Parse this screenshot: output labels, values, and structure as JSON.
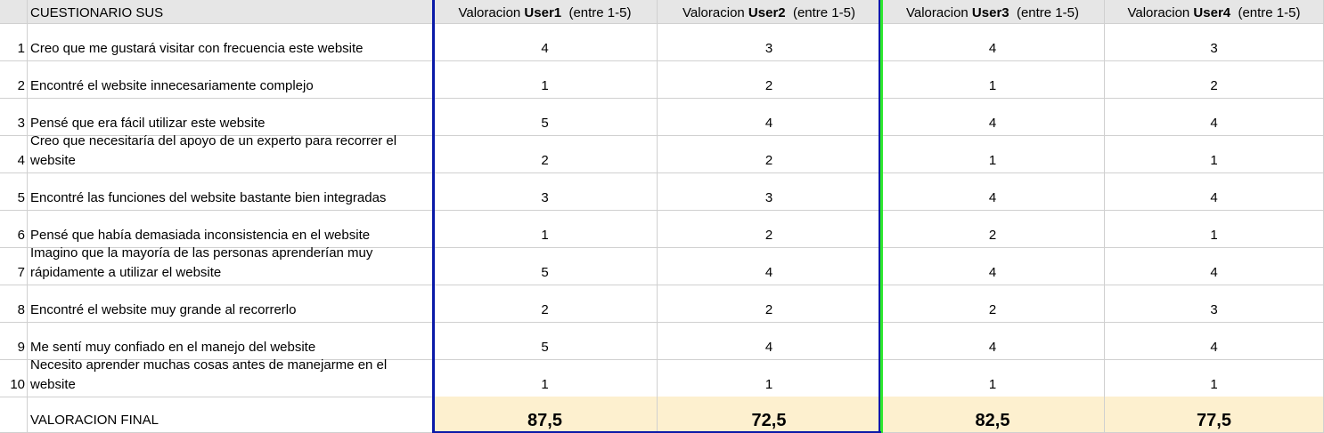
{
  "header": {
    "title": "CUESTIONARIO SUS",
    "users": [
      {
        "prefix": "Valoracion ",
        "user": "User1",
        "suffix": "  (entre 1-5)"
      },
      {
        "prefix": "Valoracion ",
        "user": "User2",
        "suffix": "  (entre 1-5)"
      },
      {
        "prefix": "Valoracion ",
        "user": "User3",
        "suffix": "  (entre 1-5)"
      },
      {
        "prefix": "Valoracion ",
        "user": "User4",
        "suffix": "  (entre 1-5)"
      }
    ]
  },
  "rows": [
    {
      "num": "1",
      "question": "Creo que me gustará visitar con frecuencia este website",
      "values": [
        "4",
        "3",
        "4",
        "3"
      ]
    },
    {
      "num": "2",
      "question": "Encontré el website innecesariamente complejo",
      "values": [
        "1",
        "2",
        "1",
        "2"
      ]
    },
    {
      "num": "3",
      "question": "Pensé que era fácil utilizar este website",
      "values": [
        "5",
        "4",
        "4",
        "4"
      ]
    },
    {
      "num": "4",
      "question": "Creo que necesitaría del apoyo de un experto para recorrer el website",
      "values": [
        "2",
        "2",
        "1",
        "1"
      ]
    },
    {
      "num": "5",
      "question": "Encontré las funciones del website bastante bien integradas",
      "values": [
        "3",
        "3",
        "4",
        "4"
      ]
    },
    {
      "num": "6",
      "question": "Pensé que había demasiada inconsistencia en el website",
      "values": [
        "1",
        "2",
        "2",
        "1"
      ]
    },
    {
      "num": "7",
      "question": "Imagino que la mayoría de las personas aprenderían muy rápidamente a utilizar el website",
      "values": [
        "5",
        "4",
        "4",
        "4"
      ]
    },
    {
      "num": "8",
      "question": "Encontré el website muy grande al recorrerlo",
      "values": [
        "2",
        "2",
        "2",
        "3"
      ]
    },
    {
      "num": "9",
      "question": "Me sentí muy confiado en el manejo del website",
      "values": [
        "5",
        "4",
        "4",
        "4"
      ]
    },
    {
      "num": "10",
      "question": "Necesito aprender muchas cosas antes de manejarme en el website",
      "values": [
        "1",
        "1",
        "1",
        "1"
      ]
    }
  ],
  "final": {
    "label": "VALORACION FINAL",
    "values": [
      "87,5",
      "72,5",
      "82,5",
      "77,5"
    ]
  },
  "colors": {
    "header_bg": "#e6e6e6",
    "final_bg": "#fdf0cf",
    "user1_2_border": "#0a1aa8",
    "user3_4_border": "#2ee82e"
  }
}
